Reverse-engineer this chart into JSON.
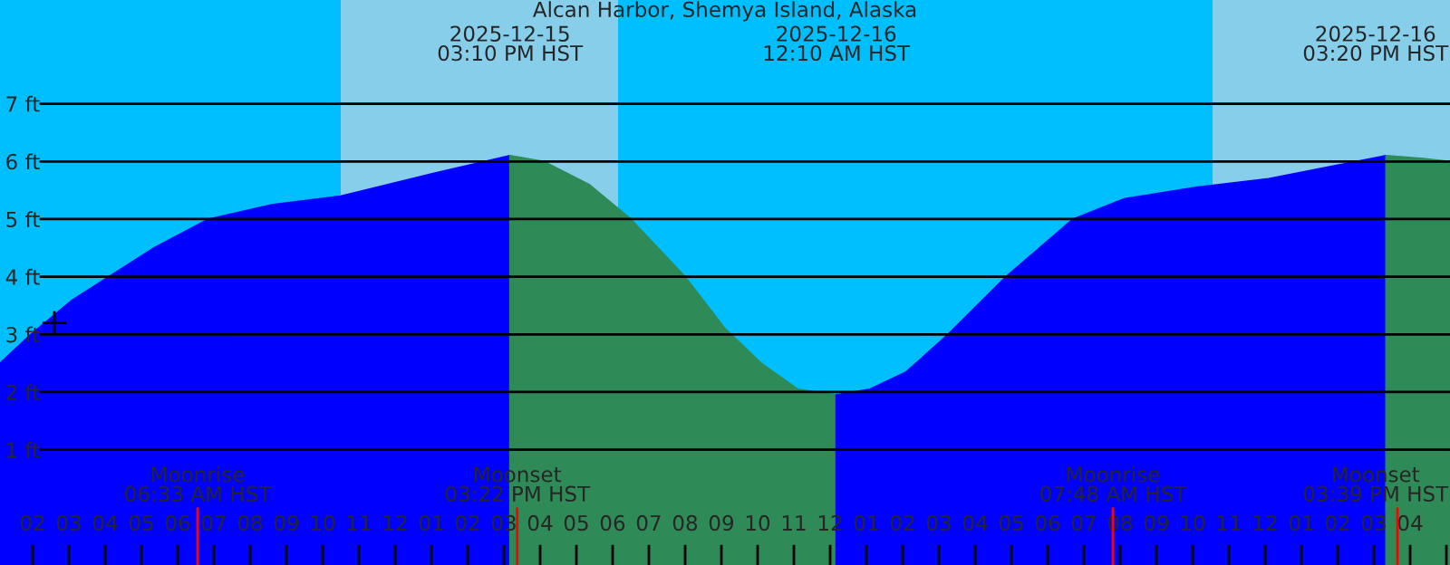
{
  "chart_data": {
    "type": "area",
    "title": "Alcan Harbor, Shemya Island, Alaska",
    "xlim": [
      "2025-12-15T01:06",
      "2025-12-16T17:06"
    ],
    "ylim": [
      -1.0,
      8.8
    ],
    "yticks": [
      {
        "value": 1,
        "label": "1 ft"
      },
      {
        "value": 2,
        "label": "2 ft"
      },
      {
        "value": 3,
        "label": "3 ft"
      },
      {
        "value": 4,
        "label": "4 ft"
      },
      {
        "value": 5,
        "label": "5 ft"
      },
      {
        "value": 6,
        "label": "6 ft"
      },
      {
        "value": 7,
        "label": "7 ft"
      }
    ],
    "xticks": [
      {
        "value": "2025-12-15T02:00",
        "label": "02"
      },
      {
        "value": "2025-12-15T03:00",
        "label": "03"
      },
      {
        "value": "2025-12-15T04:00",
        "label": "04"
      },
      {
        "value": "2025-12-15T05:00",
        "label": "05"
      },
      {
        "value": "2025-12-15T06:00",
        "label": "06"
      },
      {
        "value": "2025-12-15T07:00",
        "label": "07"
      },
      {
        "value": "2025-12-15T08:00",
        "label": "08"
      },
      {
        "value": "2025-12-15T09:00",
        "label": "09"
      },
      {
        "value": "2025-12-15T10:00",
        "label": "10"
      },
      {
        "value": "2025-12-15T11:00",
        "label": "11"
      },
      {
        "value": "2025-12-15T12:00",
        "label": "12"
      },
      {
        "value": "2025-12-15T13:00",
        "label": "01"
      },
      {
        "value": "2025-12-15T14:00",
        "label": "02"
      },
      {
        "value": "2025-12-15T15:00",
        "label": "03"
      },
      {
        "value": "2025-12-15T16:00",
        "label": "04"
      },
      {
        "value": "2025-12-15T17:00",
        "label": "05"
      },
      {
        "value": "2025-12-15T18:00",
        "label": "06"
      },
      {
        "value": "2025-12-15T19:00",
        "label": "07"
      },
      {
        "value": "2025-12-15T20:00",
        "label": "08"
      },
      {
        "value": "2025-12-15T21:00",
        "label": "09"
      },
      {
        "value": "2025-12-15T22:00",
        "label": "10"
      },
      {
        "value": "2025-12-15T23:00",
        "label": "11"
      },
      {
        "value": "2025-12-16T00:00",
        "label": "12"
      },
      {
        "value": "2025-12-16T01:00",
        "label": "01"
      },
      {
        "value": "2025-12-16T02:00",
        "label": "02"
      },
      {
        "value": "2025-12-16T03:00",
        "label": "03"
      },
      {
        "value": "2025-12-16T04:00",
        "label": "04"
      },
      {
        "value": "2025-12-16T05:00",
        "label": "05"
      },
      {
        "value": "2025-12-16T06:00",
        "label": "06"
      },
      {
        "value": "2025-12-16T07:00",
        "label": "07"
      },
      {
        "value": "2025-12-16T08:00",
        "label": "08"
      },
      {
        "value": "2025-12-16T09:00",
        "label": "09"
      },
      {
        "value": "2025-12-16T10:00",
        "label": "10"
      },
      {
        "value": "2025-12-16T11:00",
        "label": "11"
      },
      {
        "value": "2025-12-16T12:00",
        "label": "12"
      },
      {
        "value": "2025-12-16T13:00",
        "label": "01"
      },
      {
        "value": "2025-12-16T14:00",
        "label": "02"
      },
      {
        "value": "2025-12-16T15:00",
        "label": "03"
      },
      {
        "value": "2025-12-16T16:00",
        "label": "04"
      },
      {
        "value": "2025-12-16T17:00",
        "label": null
      }
    ],
    "grid": "y",
    "series": [
      {
        "color": "#0000ff",
        "x": [
          "2025-12-15T01:06",
          "2025-12-15T01:57",
          "2025-12-15T03:06",
          "2025-12-15T04:06",
          "2025-12-15T05:21",
          "2025-12-15T06:51",
          "2025-12-15T08:36",
          "2025-12-15T10:30",
          "2025-12-15T13:06",
          "2025-12-15T15:10"
        ],
        "values": [
          2.5,
          3.0,
          3.6,
          4.0,
          4.5,
          5.0,
          5.25,
          5.4,
          5.8,
          6.1
        ]
      },
      {
        "color": "#2e8b57",
        "x": [
          "2025-12-15T15:10",
          "2025-12-15T16:06",
          "2025-12-15T17:21",
          "2025-12-15T18:30",
          "2025-12-15T20:00",
          "2025-12-15T21:06",
          "2025-12-15T22:06",
          "2025-12-15T23:06",
          "2025-12-16T00:10"
        ],
        "values": [
          6.1,
          6.0,
          5.6,
          5.0,
          4.0,
          3.1,
          2.5,
          2.05,
          1.95
        ]
      },
      {
        "color": "#0000ff",
        "x": [
          "2025-12-16T00:10",
          "2025-12-16T01:06",
          "2025-12-16T02:06",
          "2025-12-16T03:15",
          "2025-12-16T04:51",
          "2025-12-16T06:42",
          "2025-12-16T08:06",
          "2025-12-16T10:06",
          "2025-12-16T12:06",
          "2025-12-16T14:06",
          "2025-12-16T15:20"
        ],
        "values": [
          1.95,
          2.05,
          2.35,
          3.0,
          4.0,
          5.0,
          5.35,
          5.55,
          5.7,
          5.95,
          6.1
        ]
      },
      {
        "color": "#2e8b57",
        "x": [
          "2025-12-16T15:20",
          "2025-12-16T16:21",
          "2025-12-16T17:06"
        ],
        "values": [
          6.1,
          6.05,
          6.0
        ]
      },
      {
        "type": "scatter",
        "marker": "cross",
        "color": "#000000",
        "x": [
          "2025-12-15T02:36"
        ],
        "values": [
          3.2
        ]
      }
    ],
    "bands": [
      {
        "axis": "x",
        "from": "2025-12-15T10:30",
        "to": "2025-12-15T18:09",
        "color": "#87ceeb"
      },
      {
        "axis": "x",
        "from": "2025-12-16T10:33",
        "to": "2025-12-16T17:06",
        "color": "#87ceeb"
      }
    ],
    "ref_lines": [
      {
        "axis": "x",
        "value": "2025-12-15T06:33",
        "label": "Moonrise\n06:33 AM HST",
        "color": "#ff0000"
      },
      {
        "axis": "x",
        "value": "2025-12-15T15:22",
        "label": "Moonset\n03:22 PM HST",
        "color": "#ff0000"
      },
      {
        "axis": "x",
        "value": "2025-12-16T07:48",
        "label": "Moonrise\n07:48 AM HST",
        "color": "#ff0000"
      },
      {
        "axis": "x",
        "value": "2025-12-16T15:39",
        "label": "Moonset\n03:39 PM HST",
        "color": "#ff0000"
      }
    ],
    "annotations": [
      "2025-12-15\n03:10 PM HST",
      "2025-12-16\n12:10 AM HST",
      "2025-12-16\n03:20 PM HST"
    ]
  }
}
